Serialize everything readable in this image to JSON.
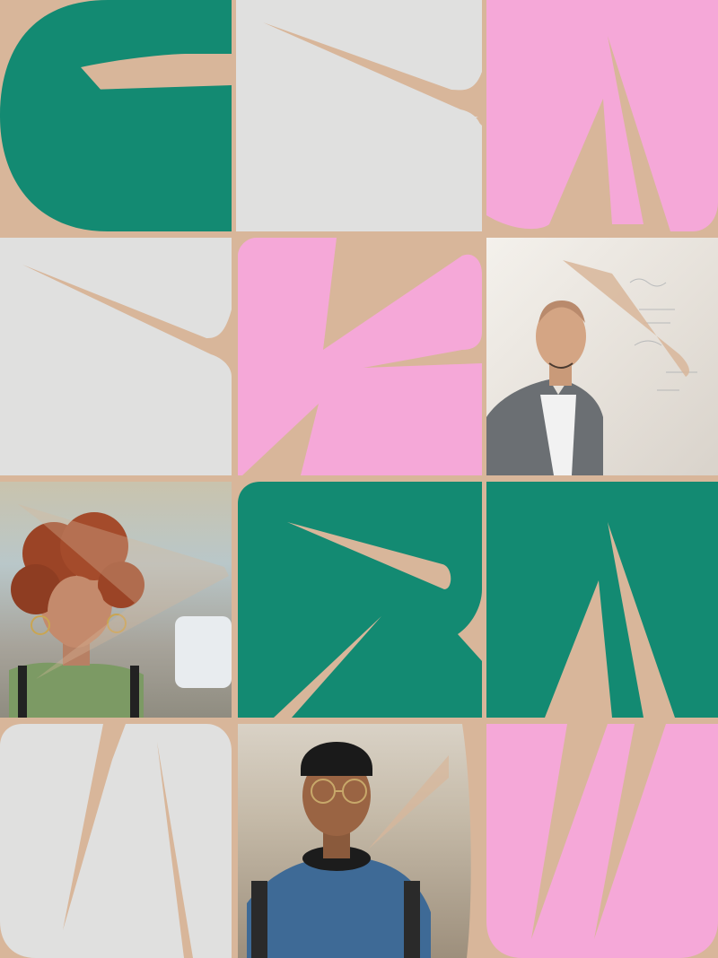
{
  "palette": {
    "green": "#138a72",
    "pink": "#f5a8d8",
    "grey": "#e0e0df",
    "tan": "#d8b69a"
  },
  "tiles": [
    {
      "row": 1,
      "col": 1,
      "kind": "glyph",
      "color": "green",
      "shape": "G"
    },
    {
      "row": 1,
      "col": 2,
      "kind": "glyph",
      "color": "grey",
      "shape": "chevron"
    },
    {
      "row": 1,
      "col": 3,
      "kind": "glyph",
      "color": "pink",
      "shape": "A"
    },
    {
      "row": 2,
      "col": 1,
      "kind": "glyph",
      "color": "grey",
      "shape": "chevron"
    },
    {
      "row": 2,
      "col": 2,
      "kind": "glyph",
      "color": "pink",
      "shape": "K"
    },
    {
      "row": 2,
      "col": 3,
      "kind": "photo",
      "subject": "man-in-grey-blazer"
    },
    {
      "row": 3,
      "col": 1,
      "kind": "photo",
      "subject": "woman-with-curly-red-hair"
    },
    {
      "row": 3,
      "col": 2,
      "kind": "glyph",
      "color": "green",
      "shape": "R"
    },
    {
      "row": 3,
      "col": 3,
      "kind": "glyph",
      "color": "green",
      "shape": "A"
    },
    {
      "row": 4,
      "col": 1,
      "kind": "glyph",
      "color": "grey",
      "shape": "N"
    },
    {
      "row": 4,
      "col": 2,
      "kind": "photo",
      "subject": "young-man-with-beanie-and-glasses"
    },
    {
      "row": 4,
      "col": 3,
      "kind": "glyph",
      "color": "pink",
      "shape": "U"
    }
  ]
}
